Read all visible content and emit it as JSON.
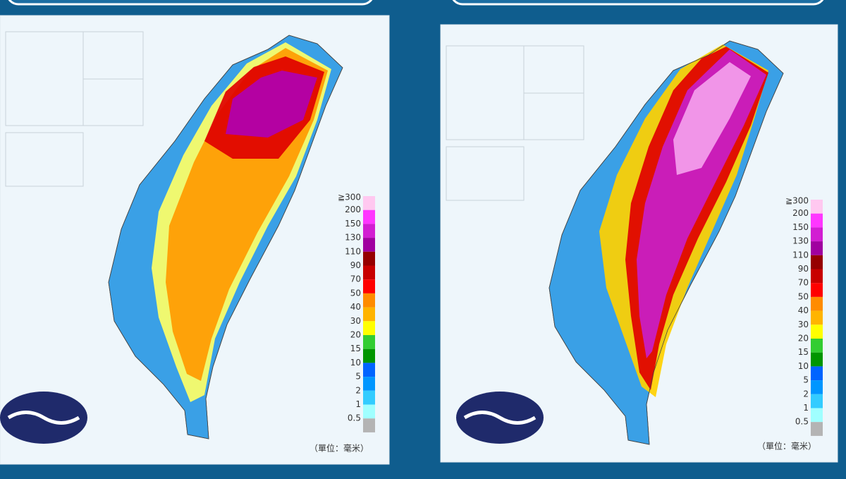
{
  "panels": [
    {
      "legend": [
        "≧300",
        "200",
        "150",
        "130",
        "110",
        "90",
        "70",
        "50",
        "40",
        "30",
        "20",
        "15",
        "10",
        "5",
        "2",
        "1",
        "0.5"
      ],
      "unit": "（單位：毫米）"
    },
    {
      "legend": [
        "≧300",
        "200",
        "150",
        "130",
        "110",
        "90",
        "70",
        "50",
        "40",
        "30",
        "20",
        "15",
        "10",
        "5",
        "2",
        "1",
        "0.5"
      ],
      "unit": "（單位：毫米）"
    }
  ],
  "legend_colors": [
    "#ffc8f0",
    "#ff37ff",
    "#d21ed2",
    "#a000a0",
    "#960000",
    "#c80000",
    "#ff0000",
    "#ff8c00",
    "#ffb400",
    "#ffff00",
    "#32cd32",
    "#009600",
    "#0064ff",
    "#0096ff",
    "#33ccff",
    "#a0ffff",
    "#b4b4b4"
  ]
}
